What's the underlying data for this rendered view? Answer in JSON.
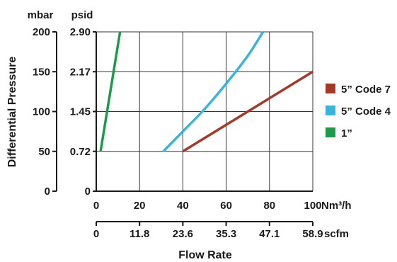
{
  "chart_data": {
    "type": "line",
    "xlabel": "Flow Rate",
    "ylabel": "Differential Pressure",
    "x_unit": "Nm³/h",
    "x2_unit": "scfm",
    "y_unit_left": "mbar",
    "y_unit_right": "psid",
    "xlim": [
      0,
      100
    ],
    "ylim": [
      0,
      200
    ],
    "x_ticks": [
      "0",
      "20",
      "40",
      "60",
      "80",
      "100"
    ],
    "x2_ticks": [
      "0",
      "11.8",
      "23.6",
      "35.3",
      "47.1",
      "58.9"
    ],
    "y_ticks_mbar": [
      "0",
      "50",
      "100",
      "150",
      "200"
    ],
    "y_ticks_psid": [
      "0",
      "0.72",
      "1.45",
      "2.17",
      "2.90"
    ],
    "grid": true,
    "legend_position": "right",
    "series": [
      {
        "name": "5” Code 7",
        "color": "#a23a2a",
        "x": [
          40,
          100
        ],
        "y": [
          50,
          150
        ]
      },
      {
        "name": "5” Code 4",
        "color": "#3ab4dc",
        "x": [
          31,
          40,
          50,
          60,
          70,
          77
        ],
        "y": [
          50,
          75,
          103,
          135,
          170,
          200
        ]
      },
      {
        "name": "1”",
        "color": "#1e9a4a",
        "x": [
          2,
          11
        ],
        "y": [
          50,
          200
        ]
      }
    ]
  }
}
